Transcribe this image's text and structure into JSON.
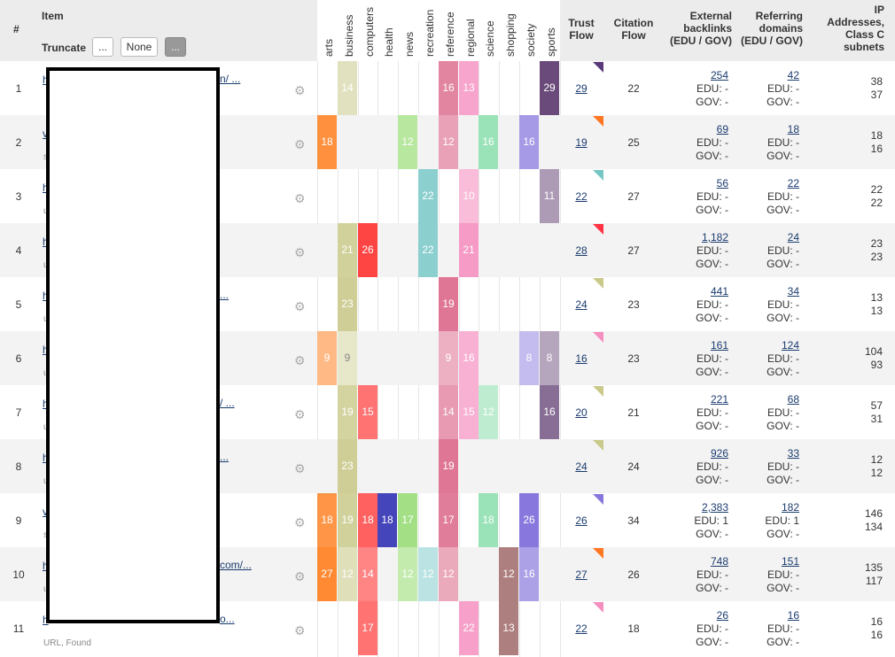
{
  "header": {
    "num": "#",
    "item": "Item",
    "truncate": "Truncate",
    "btn_dots": "...",
    "btn_none": "None",
    "btn_dots2": "...",
    "trust_flow": [
      "Trust",
      "Flow"
    ],
    "citation_flow": [
      "Citation",
      "Flow"
    ],
    "external": [
      "External",
      "backlinks",
      "(EDU / GOV)"
    ],
    "referring": [
      "Referring",
      "domains",
      "(EDU / GOV)"
    ],
    "ip": [
      "IP",
      "Addresses,",
      "Class C",
      "subnets"
    ]
  },
  "topics": [
    "arts",
    "business",
    "computers",
    "health",
    "news",
    "recreation",
    "reference",
    "regional",
    "science",
    "shopping",
    "society",
    "sports"
  ],
  "topic_colors": [
    "#ff8a33",
    "#c9c98a",
    "#ff4444",
    "#4444bb",
    "#99dd77",
    "#77c6c6",
    "#dd6f90",
    "#f58fc0",
    "#88ddaa",
    "#a06868",
    "#8877dd",
    "#6a4a7a"
  ],
  "rows": [
    {
      "n": "1",
      "link": "h",
      "link_tail": "n/ ...",
      "sub": "",
      "tf": "29",
      "tri": "#5a3a7a",
      "cf": "22",
      "ext": "254",
      "edu_e": "EDU: -",
      "gov_e": "GOV: -",
      "ref": "42",
      "edu_r": "EDU: -",
      "gov_r": "GOV: -",
      "ip1": "38",
      "ip2": "37",
      "topics": [
        {
          "i": 1,
          "v": "14",
          "a": 0.55
        },
        {
          "i": 6,
          "v": "16",
          "a": 0.85
        },
        {
          "i": 7,
          "v": "13",
          "a": 0.8
        },
        {
          "i": 11,
          "v": "29",
          "a": 1.0
        }
      ]
    },
    {
      "n": "2",
      "link": "v",
      "link_tail": "",
      "sub": "s",
      "tf": "19",
      "tri": "#ff7722",
      "cf": "25",
      "ext": "69",
      "edu_e": "EDU: -",
      "gov_e": "GOV: -",
      "ref": "18",
      "edu_r": "EDU: -",
      "gov_r": "GOV: -",
      "ip1": "18",
      "ip2": "16",
      "topics": [
        {
          "i": 0,
          "v": "18",
          "a": 0.95
        },
        {
          "i": 4,
          "v": "12",
          "a": 0.7
        },
        {
          "i": 6,
          "v": "12",
          "a": 0.65
        },
        {
          "i": 8,
          "v": "16",
          "a": 0.85
        },
        {
          "i": 10,
          "v": "16",
          "a": 0.75
        }
      ]
    },
    {
      "n": "3",
      "link": "h",
      "link_tail": "",
      "sub": "u",
      "tf": "22",
      "tri": "#77c6c6",
      "cf": "27",
      "ext": "56",
      "edu_e": "EDU: -",
      "gov_e": "GOV: -",
      "ref": "22",
      "edu_r": "EDU: -",
      "gov_r": "GOV: -",
      "ip1": "22",
      "ip2": "22",
      "topics": [
        {
          "i": 5,
          "v": "22",
          "a": 0.85
        },
        {
          "i": 7,
          "v": "10",
          "a": 0.6
        },
        {
          "i": 11,
          "v": "11",
          "a": 0.55
        }
      ]
    },
    {
      "n": "4",
      "link": "h",
      "link_tail": "",
      "sub": "u",
      "tf": "28",
      "tri": "#ff3344",
      "cf": "27",
      "ext": "1,182",
      "edu_e": "EDU: -",
      "gov_e": "GOV: -",
      "ref": "24",
      "edu_r": "EDU: -",
      "gov_r": "GOV: -",
      "ip1": "23",
      "ip2": "23",
      "topics": [
        {
          "i": 1,
          "v": "21",
          "a": 0.85
        },
        {
          "i": 2,
          "v": "26",
          "a": 1.0
        },
        {
          "i": 5,
          "v": "22",
          "a": 0.85
        },
        {
          "i": 7,
          "v": "21",
          "a": 0.9
        }
      ]
    },
    {
      "n": "5",
      "link": "h",
      "link_tail": "...",
      "sub": "u",
      "tf": "24",
      "tri": "#c9c98a",
      "cf": "23",
      "ext": "441",
      "edu_e": "EDU: -",
      "gov_e": "GOV: -",
      "ref": "34",
      "edu_r": "EDU: -",
      "gov_r": "GOV: -",
      "ip1": "13",
      "ip2": "13",
      "topics": [
        {
          "i": 1,
          "v": "23",
          "a": 0.9
        },
        {
          "i": 6,
          "v": "19",
          "a": 0.95
        }
      ]
    },
    {
      "n": "6",
      "link": "h",
      "link_tail": "",
      "sub": "u",
      "tf": "16",
      "tri": "#f58fc0",
      "cf": "23",
      "ext": "161",
      "edu_e": "EDU: -",
      "gov_e": "GOV: -",
      "ref": "124",
      "edu_r": "EDU: -",
      "gov_r": "GOV: -",
      "ip1": "104",
      "ip2": "93",
      "topics": [
        {
          "i": 0,
          "v": "9",
          "a": 0.6
        },
        {
          "i": 1,
          "v": "9",
          "a": 0.45
        },
        {
          "i": 6,
          "v": "9",
          "a": 0.55
        },
        {
          "i": 7,
          "v": "16",
          "a": 0.7
        },
        {
          "i": 10,
          "v": "8",
          "a": 0.5
        },
        {
          "i": 11,
          "v": "8",
          "a": 0.5
        }
      ]
    },
    {
      "n": "7",
      "link": "h",
      "link_tail": "/ ...",
      "sub": "u",
      "tf": "20",
      "tri": "#c9c98a",
      "cf": "21",
      "ext": "221",
      "edu_e": "EDU: -",
      "gov_e": "GOV: -",
      "ref": "68",
      "edu_r": "EDU: -",
      "gov_r": "GOV: -",
      "ip1": "57",
      "ip2": "31",
      "topics": [
        {
          "i": 1,
          "v": "19",
          "a": 0.8
        },
        {
          "i": 2,
          "v": "15",
          "a": 0.75
        },
        {
          "i": 6,
          "v": "14",
          "a": 0.7
        },
        {
          "i": 7,
          "v": "15",
          "a": 0.7
        },
        {
          "i": 8,
          "v": "12",
          "a": 0.55
        },
        {
          "i": 11,
          "v": "16",
          "a": 0.8
        }
      ]
    },
    {
      "n": "8",
      "link": "h",
      "link_tail": "...",
      "sub": "u",
      "tf": "24",
      "tri": "#c9c98a",
      "cf": "24",
      "ext": "926",
      "edu_e": "EDU: -",
      "gov_e": "GOV: -",
      "ref": "33",
      "edu_r": "EDU: -",
      "gov_r": "GOV: -",
      "ip1": "12",
      "ip2": "12",
      "topics": [
        {
          "i": 1,
          "v": "23",
          "a": 0.9
        },
        {
          "i": 6,
          "v": "19",
          "a": 0.95
        }
      ]
    },
    {
      "n": "9",
      "link": "v",
      "link_tail": "",
      "sub": "s",
      "tf": "26",
      "tri": "#8877dd",
      "cf": "34",
      "ext": "2,383",
      "edu_e": "EDU: 1",
      "gov_e": "GOV: -",
      "ref": "182",
      "edu_r": "EDU: 1",
      "gov_r": "GOV: -",
      "ip1": "146",
      "ip2": "134",
      "topics": [
        {
          "i": 0,
          "v": "18",
          "a": 0.9
        },
        {
          "i": 1,
          "v": "19",
          "a": 0.85
        },
        {
          "i": 2,
          "v": "18",
          "a": 0.85
        },
        {
          "i": 3,
          "v": "18",
          "a": 1.0
        },
        {
          "i": 4,
          "v": "17",
          "a": 0.9
        },
        {
          "i": 6,
          "v": "17",
          "a": 0.9
        },
        {
          "i": 8,
          "v": "18",
          "a": 0.85
        },
        {
          "i": 10,
          "v": "26",
          "a": 1.0
        }
      ]
    },
    {
      "n": "10",
      "link": "h",
      "link_tail": "com/...",
      "sub": "u",
      "tf": "27",
      "tri": "#ff7722",
      "cf": "26",
      "ext": "748",
      "edu_e": "EDU: -",
      "gov_e": "GOV: -",
      "ref": "151",
      "edu_r": "EDU: -",
      "gov_r": "GOV: -",
      "ip1": "135",
      "ip2": "117",
      "topics": [
        {
          "i": 0,
          "v": "27",
          "a": 1.0
        },
        {
          "i": 1,
          "v": "12",
          "a": 0.6
        },
        {
          "i": 2,
          "v": "14",
          "a": 0.65
        },
        {
          "i": 4,
          "v": "12",
          "a": 0.6
        },
        {
          "i": 5,
          "v": "12",
          "a": 0.5
        },
        {
          "i": 6,
          "v": "12",
          "a": 0.6
        },
        {
          "i": 9,
          "v": "12",
          "a": 0.85
        },
        {
          "i": 10,
          "v": "16",
          "a": 0.7
        }
      ]
    },
    {
      "n": "11",
      "link": "h",
      "link_tail": "o...",
      "sub": "URL, Found",
      "tf": "22",
      "tri": "#f58fc0",
      "cf": "18",
      "ext": "26",
      "edu_e": "EDU: -",
      "gov_e": "GOV: -",
      "ref": "16",
      "edu_r": "EDU: -",
      "gov_r": "GOV: -",
      "ip1": "16",
      "ip2": "16",
      "topics": [
        {
          "i": 2,
          "v": "17",
          "a": 0.75
        },
        {
          "i": 7,
          "v": "22",
          "a": 0.85
        },
        {
          "i": 9,
          "v": "13",
          "a": 0.85
        }
      ]
    }
  ]
}
